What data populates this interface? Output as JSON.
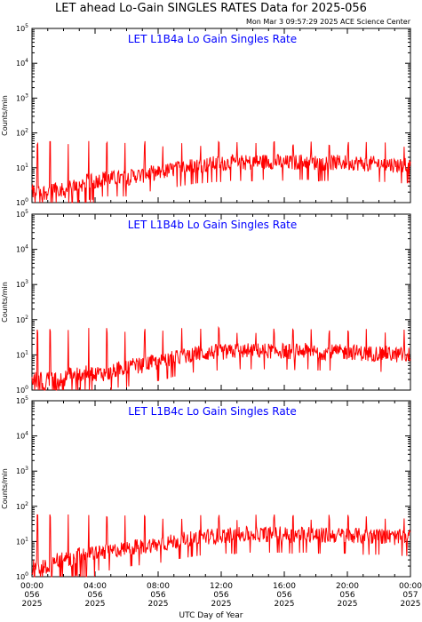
{
  "title": "LET ahead Lo-Gain SINGLES RATES Data for 2025-056",
  "timestamp": "Mon Mar  3 09:57:29 2025 ACE Science Center",
  "xlabel": "UTC Day of Year",
  "colors": {
    "series": "#ff0000",
    "panel_title": "#0000ff",
    "axes": "#000000"
  },
  "x_ticks": [
    {
      "hour": 0,
      "time": "00:00",
      "doy": "056",
      "year": "2025"
    },
    {
      "hour": 4,
      "time": "04:00",
      "doy": "056",
      "year": "2025"
    },
    {
      "hour": 8,
      "time": "08:00",
      "doy": "056",
      "year": "2025"
    },
    {
      "hour": 12,
      "time": "12:00",
      "doy": "056",
      "year": "2025"
    },
    {
      "hour": 16,
      "time": "16:00",
      "doy": "056",
      "year": "2025"
    },
    {
      "hour": 20,
      "time": "20:00",
      "doy": "056",
      "year": "2025"
    },
    {
      "hour": 24,
      "time": "00:00",
      "doy": "057",
      "year": "2025"
    }
  ],
  "chart_data": [
    {
      "type": "line",
      "title": "LET L1B4a Lo Gain Singles Rate",
      "ylabel": "Counts/min",
      "yscale": "log",
      "ylim": [
        1,
        100000
      ],
      "xlim": [
        0,
        24
      ],
      "yticks": [
        {
          "base": "10",
          "exp": "0"
        },
        {
          "base": "10",
          "exp": "1"
        },
        {
          "base": "10",
          "exp": "2"
        },
        {
          "base": "10",
          "exp": "3"
        },
        {
          "base": "10",
          "exp": "4"
        },
        {
          "base": "10",
          "exp": "5"
        }
      ],
      "series": [
        {
          "x": [
            0,
            0.5,
            1,
            1.5,
            2,
            2.5,
            3,
            3.5,
            4,
            4.5,
            5,
            5.5,
            6,
            6.5,
            7,
            7.5,
            8,
            8.5,
            9,
            9.5,
            10,
            10.5,
            11,
            11.5,
            12,
            12.5,
            13,
            13.5,
            14,
            14.5,
            15,
            15.5,
            16,
            16.5,
            17,
            17.5,
            18,
            18.5,
            19,
            19.5,
            20,
            20.5,
            21,
            21.5,
            22,
            22.5,
            23,
            23.5,
            24
          ],
          "values": [
            2,
            2,
            2,
            3,
            2,
            3,
            3,
            4,
            4,
            5,
            5,
            5,
            5,
            6,
            6,
            7,
            7,
            8,
            9,
            10,
            11,
            12,
            12,
            13,
            13,
            14,
            14,
            14,
            14,
            15,
            15,
            15,
            14,
            14,
            15,
            15,
            14,
            14,
            14,
            14,
            14,
            14,
            13,
            13,
            13,
            13,
            12,
            12,
            12
          ]
        }
      ],
      "spikes": [
        0.35,
        1.15,
        2.3,
        3.6,
        4.75,
        5.9,
        7.15,
        8.3,
        9.5,
        10.7,
        11.85,
        13.0,
        14.2,
        15.35,
        16.55,
        17.7,
        18.85,
        20.05,
        21.2,
        22.4,
        23.6
      ]
    },
    {
      "type": "line",
      "title": "LET L1B4b Lo Gain Singles Rate",
      "ylabel": "Counts/min",
      "yscale": "log",
      "ylim": [
        1,
        100000
      ],
      "xlim": [
        0,
        24
      ],
      "yticks": [
        {
          "base": "10",
          "exp": "0"
        },
        {
          "base": "10",
          "exp": "1"
        },
        {
          "base": "10",
          "exp": "2"
        },
        {
          "base": "10",
          "exp": "3"
        },
        {
          "base": "10",
          "exp": "4"
        },
        {
          "base": "10",
          "exp": "5"
        }
      ],
      "series": [
        {
          "x": [
            0,
            0.5,
            1,
            1.5,
            2,
            2.5,
            3,
            3.5,
            4,
            4.5,
            5,
            5.5,
            6,
            6.5,
            7,
            7.5,
            8,
            8.5,
            9,
            9.5,
            10,
            10.5,
            11,
            11.5,
            12,
            12.5,
            13,
            13.5,
            14,
            14.5,
            15,
            15.5,
            16,
            16.5,
            17,
            17.5,
            18,
            18.5,
            19,
            19.5,
            20,
            20.5,
            21,
            21.5,
            22,
            22.5,
            23,
            23.5,
            24
          ],
          "values": [
            2,
            2,
            2,
            2,
            2,
            3,
            3,
            3,
            3,
            3,
            3,
            4,
            4,
            5,
            5,
            6,
            6,
            7,
            8,
            9,
            10,
            11,
            11,
            12,
            12,
            12,
            13,
            13,
            13,
            13,
            13,
            13,
            13,
            12,
            13,
            13,
            12,
            12,
            12,
            12,
            12,
            12,
            11,
            11,
            11,
            11,
            10,
            10,
            10
          ]
        }
      ],
      "spikes": [
        0.35,
        1.15,
        2.3,
        3.6,
        4.75,
        5.9,
        7.15,
        8.3,
        9.5,
        10.7,
        11.85,
        13.0,
        14.2,
        15.35,
        16.55,
        17.7,
        18.85,
        20.05,
        21.2,
        22.4,
        23.6
      ]
    },
    {
      "type": "line",
      "title": "LET L1B4c Lo Gain Singles Rate",
      "ylabel": "Counts/min",
      "yscale": "log",
      "ylim": [
        1,
        100000
      ],
      "xlim": [
        0,
        24
      ],
      "yticks": [
        {
          "base": "10",
          "exp": "0"
        },
        {
          "base": "10",
          "exp": "1"
        },
        {
          "base": "10",
          "exp": "2"
        },
        {
          "base": "10",
          "exp": "3"
        },
        {
          "base": "10",
          "exp": "4"
        },
        {
          "base": "10",
          "exp": "5"
        }
      ],
      "series": [
        {
          "x": [
            0,
            0.5,
            1,
            1.5,
            2,
            2.5,
            3,
            3.5,
            4,
            4.5,
            5,
            5.5,
            6,
            6.5,
            7,
            7.5,
            8,
            8.5,
            9,
            9.5,
            10,
            10.5,
            11,
            11.5,
            12,
            12.5,
            13,
            13.5,
            14,
            14.5,
            15,
            15.5,
            16,
            16.5,
            17,
            17.5,
            18,
            18.5,
            19,
            19.5,
            20,
            20.5,
            21,
            21.5,
            22,
            22.5,
            23,
            23.5,
            24
          ],
          "values": [
            2,
            2,
            2,
            3,
            3,
            3,
            4,
            4,
            5,
            5,
            5,
            6,
            6,
            7,
            7,
            8,
            8,
            9,
            10,
            11,
            12,
            13,
            14,
            14,
            15,
            15,
            15,
            16,
            16,
            16,
            16,
            16,
            16,
            15,
            16,
            16,
            15,
            15,
            15,
            15,
            15,
            15,
            14,
            14,
            14,
            14,
            13,
            13,
            13
          ]
        }
      ],
      "spikes": [
        0.35,
        1.15,
        2.3,
        3.6,
        4.75,
        5.9,
        7.15,
        8.3,
        9.5,
        10.7,
        11.85,
        13.0,
        14.2,
        15.35,
        16.55,
        17.7,
        18.85,
        20.05,
        21.2,
        22.4,
        23.6
      ]
    }
  ]
}
